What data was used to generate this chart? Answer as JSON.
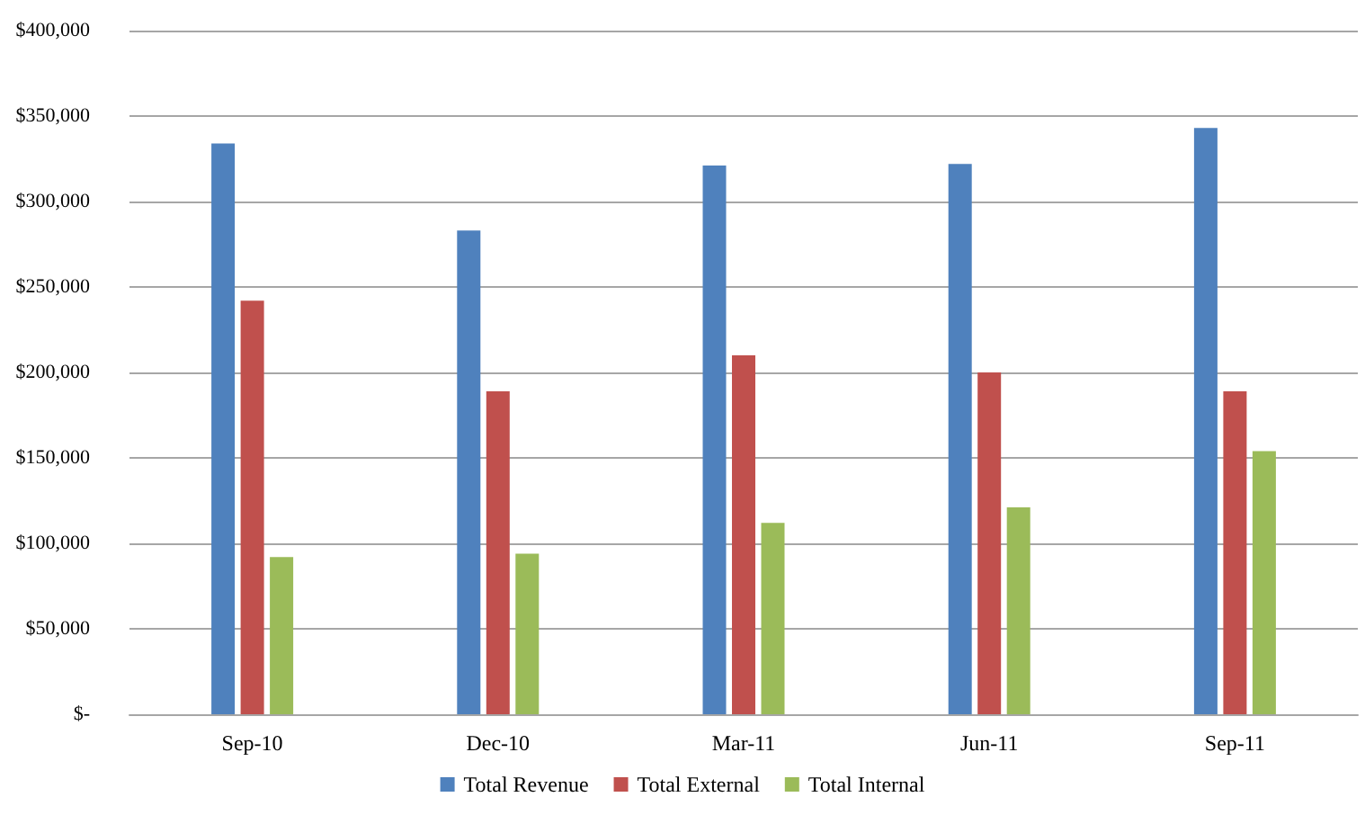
{
  "chart_data": {
    "type": "bar",
    "categories": [
      "Sep-10",
      "Dec-10",
      "Mar-11",
      "Jun-11",
      "Sep-11"
    ],
    "series": [
      {
        "name": "Total Revenue",
        "color": "#4f81bd",
        "values": [
          334000,
          283000,
          321000,
          322000,
          343000
        ]
      },
      {
        "name": "Total External",
        "color": "#c0504d",
        "values": [
          242000,
          189000,
          210000,
          200000,
          189000
        ]
      },
      {
        "name": "Total Internal",
        "color": "#9bbb59",
        "values": [
          92000,
          94000,
          112000,
          121000,
          154000
        ]
      }
    ],
    "ylim": [
      0,
      400000
    ],
    "yticks": [
      {
        "value": 0,
        "label": "$-"
      },
      {
        "value": 50000,
        "label": "$50,000"
      },
      {
        "value": 100000,
        "label": "$100,000"
      },
      {
        "value": 150000,
        "label": "$150,000"
      },
      {
        "value": 200000,
        "label": "$200,000"
      },
      {
        "value": 250000,
        "label": "$250,000"
      },
      {
        "value": 300000,
        "label": "$300,000"
      },
      {
        "value": 350000,
        "label": "$350,000"
      },
      {
        "value": 400000,
        "label": "$400,000"
      }
    ],
    "grid": "y",
    "legend": "bottom"
  }
}
